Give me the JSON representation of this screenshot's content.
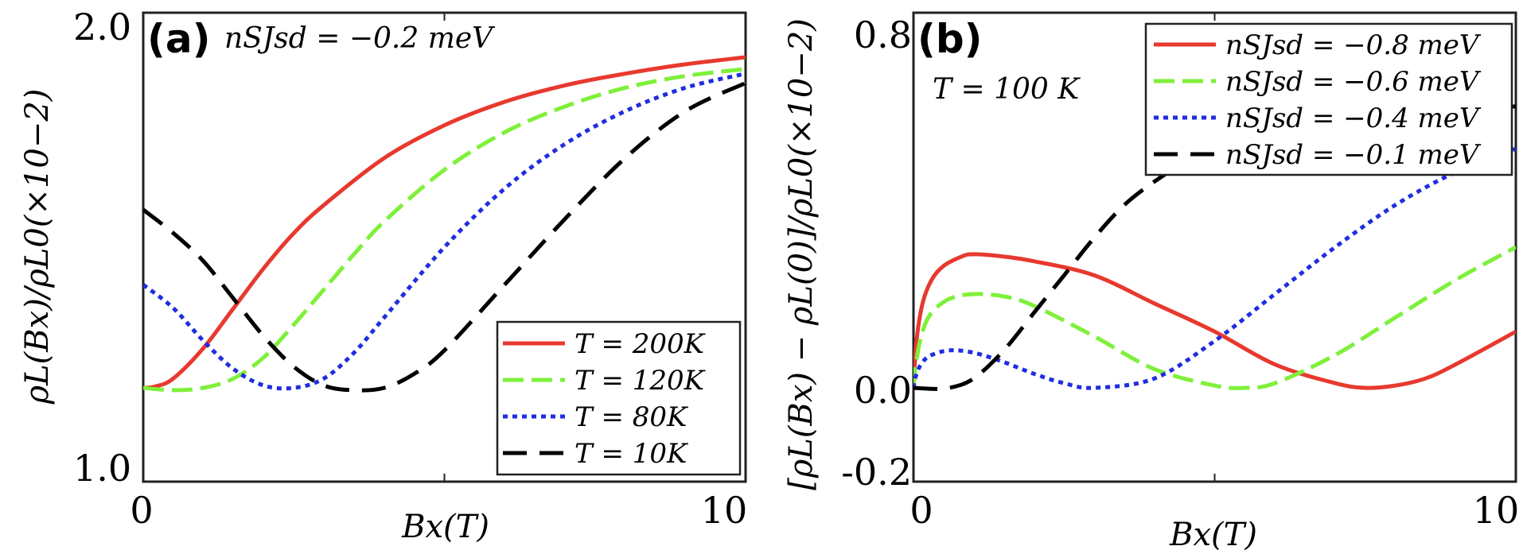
{
  "chart_data": [
    {
      "type": "line",
      "panel_label": "(a)",
      "annotation": "nSJsd = −0.2 meV",
      "xlabel": "Bx(T)",
      "ylabel": "ρL(Bx)/ρL0(×10−2)",
      "xlim": [
        0,
        10
      ],
      "ylim": [
        1.0,
        2.0
      ],
      "xticks": [
        "0",
        "10"
      ],
      "yticks": [
        "1.0",
        "2.0"
      ],
      "legend_position": "lower-right",
      "series": [
        {
          "name": "T = 200K",
          "color": "#e8392f",
          "dash": "solid",
          "x": [
            0,
            0.2,
            0.5,
            1,
            1.5,
            2,
            2.5,
            3,
            4,
            5,
            6,
            7,
            8,
            9,
            10
          ],
          "y": [
            1.2,
            1.203,
            1.22,
            1.285,
            1.37,
            1.455,
            1.53,
            1.59,
            1.69,
            1.76,
            1.81,
            1.845,
            1.87,
            1.89,
            1.905
          ]
        },
        {
          "name": "T = 120K",
          "color": "#7ef03a",
          "dash": "dashed",
          "x": [
            0,
            0.5,
            1,
            1.5,
            2,
            2.5,
            3,
            3.5,
            4,
            5,
            6,
            7,
            8,
            9,
            10
          ],
          "y": [
            1.2,
            1.195,
            1.2,
            1.22,
            1.265,
            1.335,
            1.41,
            1.485,
            1.555,
            1.665,
            1.745,
            1.8,
            1.84,
            1.865,
            1.88
          ]
        },
        {
          "name": "T = 80K",
          "color": "#1f2de0",
          "dash": "dotted",
          "x": [
            0,
            0.5,
            1,
            1.5,
            2,
            2.5,
            3,
            3.5,
            4,
            5,
            6,
            7,
            8,
            9,
            10
          ],
          "y": [
            1.42,
            1.37,
            1.3,
            1.24,
            1.205,
            1.2,
            1.22,
            1.275,
            1.35,
            1.5,
            1.625,
            1.72,
            1.79,
            1.84,
            1.87
          ]
        },
        {
          "name": "T = 10K",
          "color": "#000000",
          "dash": "longdash",
          "x": [
            0,
            0.5,
            1,
            1.5,
            2,
            2.5,
            3,
            3.5,
            4,
            4.5,
            5,
            6,
            7,
            8,
            9,
            10
          ],
          "y": [
            1.58,
            1.53,
            1.47,
            1.39,
            1.31,
            1.245,
            1.205,
            1.195,
            1.2,
            1.23,
            1.28,
            1.42,
            1.56,
            1.69,
            1.79,
            1.85
          ]
        }
      ]
    },
    {
      "type": "line",
      "panel_label": "(b)",
      "annotation": "T = 100 K",
      "xlabel": "Bx(T)",
      "ylabel": "[ρL(Bx) − ρL(0)]/ρL0(×10−2)",
      "xlim": [
        0,
        10
      ],
      "ylim": [
        -0.2,
        0.8
      ],
      "xticks": [
        "0",
        "10"
      ],
      "yticks": [
        "-0.2",
        "0.0",
        "0.8"
      ],
      "legend_position": "upper-right",
      "series": [
        {
          "name": "nSJsd = −0.8 meV",
          "color": "#e8392f",
          "dash": "solid",
          "x": [
            0,
            0.05,
            0.15,
            0.3,
            0.5,
            0.8,
            1,
            1.5,
            2,
            3,
            4,
            5,
            6,
            7,
            7.5,
            8,
            8.5,
            9,
            10
          ],
          "y": [
            0,
            0.1,
            0.18,
            0.23,
            0.26,
            0.28,
            0.285,
            0.28,
            0.27,
            0.24,
            0.18,
            0.12,
            0.05,
            0.01,
            0.0,
            0.005,
            0.02,
            0.05,
            0.12
          ]
        },
        {
          "name": "nSJsd = −0.6 meV",
          "color": "#7ef03a",
          "dash": "dashed",
          "x": [
            0,
            0.05,
            0.15,
            0.3,
            0.6,
            1,
            1.5,
            2,
            3,
            4,
            5,
            5.5,
            6,
            7,
            8,
            9,
            10
          ],
          "y": [
            0,
            0.06,
            0.12,
            0.16,
            0.19,
            0.2,
            0.195,
            0.175,
            0.11,
            0.04,
            0.005,
            0.0,
            0.01,
            0.07,
            0.15,
            0.23,
            0.3
          ]
        },
        {
          "name": "nSJsd = −0.4 meV",
          "color": "#1f2de0",
          "dash": "dotted",
          "x": [
            0,
            0.05,
            0.15,
            0.3,
            0.6,
            1,
            1.5,
            2,
            2.5,
            3,
            4,
            5,
            6,
            7,
            8,
            9,
            10
          ],
          "y": [
            0,
            0.03,
            0.055,
            0.07,
            0.08,
            0.075,
            0.055,
            0.03,
            0.01,
            0.0,
            0.02,
            0.1,
            0.2,
            0.3,
            0.39,
            0.46,
            0.51
          ]
        },
        {
          "name": "nSJsd = −0.1 meV",
          "color": "#000000",
          "dash": "longdash",
          "x": [
            0,
            0.3,
            0.6,
            1,
            1.5,
            2,
            2.5,
            3,
            3.5,
            4,
            4.5,
            5,
            6,
            7,
            8,
            9,
            10
          ],
          "y": [
            0,
            -0.002,
            0.0,
            0.02,
            0.08,
            0.16,
            0.24,
            0.32,
            0.39,
            0.44,
            0.48,
            0.51,
            0.55,
            0.575,
            0.59,
            0.6,
            0.6
          ]
        }
      ]
    }
  ]
}
